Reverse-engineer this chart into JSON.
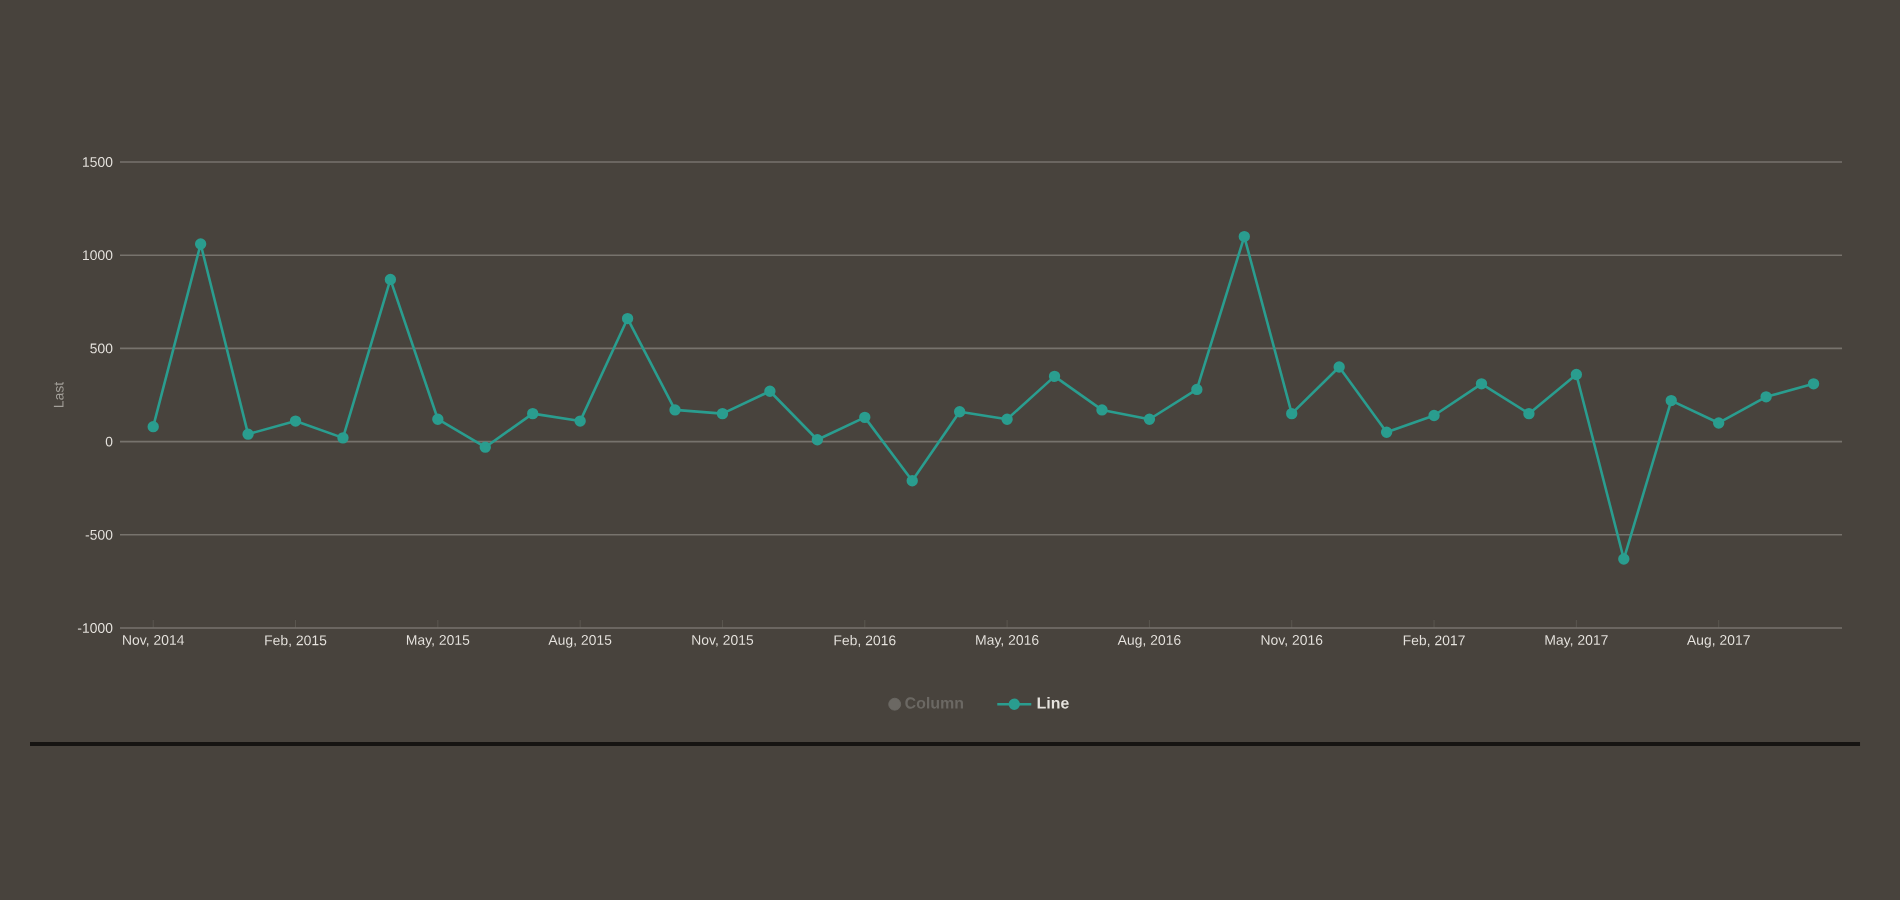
{
  "chart_data": {
    "type": "line",
    "ylabel": "Last",
    "categories": [
      "Nov, 2014",
      null,
      null,
      "Feb, 2015",
      null,
      null,
      "May, 2015",
      null,
      null,
      "Aug, 2015",
      null,
      null,
      "Nov, 2015",
      null,
      null,
      "Feb, 2016",
      null,
      null,
      "May, 2016",
      null,
      null,
      "Aug, 2016",
      null,
      null,
      "Nov, 2016",
      null,
      null,
      "Feb, 2017",
      null,
      null,
      "May, 2017",
      null,
      null,
      "Aug, 2017",
      null,
      null
    ],
    "series": [
      {
        "name": "Column",
        "type": "bar",
        "color": "#6b6863",
        "values": [
          null,
          null,
          null,
          null,
          null,
          null,
          null,
          null,
          null,
          null,
          null,
          null,
          null,
          null,
          null,
          null,
          null,
          null,
          null,
          null,
          null,
          null,
          null,
          null,
          null,
          null,
          null,
          null,
          null,
          null,
          null,
          null,
          null,
          null,
          null,
          null
        ]
      },
      {
        "name": "Line",
        "color": "#2a9d8f",
        "values": [
          80,
          1060,
          40,
          110,
          20,
          870,
          120,
          -30,
          150,
          110,
          660,
          170,
          150,
          270,
          10,
          130,
          -210,
          160,
          120,
          350,
          170,
          120,
          280,
          1100,
          150,
          400,
          50,
          140,
          310,
          150,
          360,
          -630,
          220,
          100,
          240,
          310
        ]
      }
    ],
    "ylim": [
      -1000,
      1500
    ],
    "yticks": [
      -1000,
      -500,
      0,
      500,
      1000,
      1500
    ],
    "grid": "y",
    "legend": "bottom",
    "marker": "circle"
  }
}
